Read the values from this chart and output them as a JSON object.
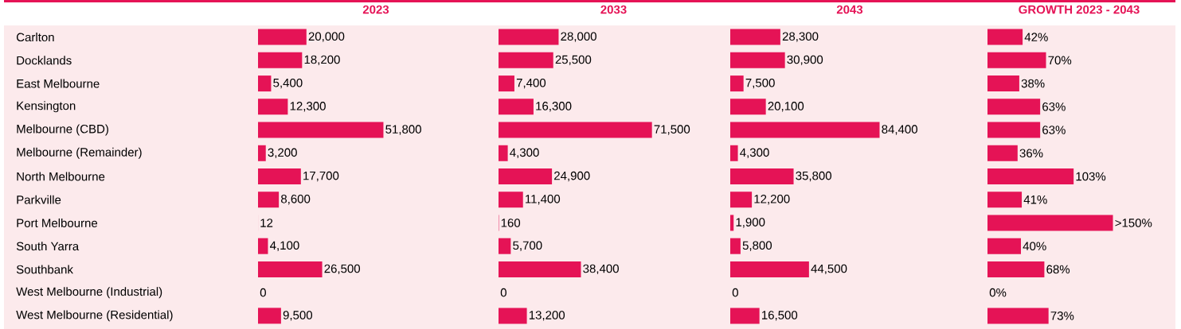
{
  "chart_data": [
    {
      "type": "bar",
      "orientation": "horizontal",
      "title": "2023",
      "color": "#e51356",
      "tick_labels": "y",
      "categories": [
        "Carlton",
        "Docklands",
        "East Melbourne",
        "Kensington",
        "Melbourne (CBD)",
        "Melbourne (Remainder)",
        "North Melbourne",
        "Parkville",
        "Port Melbourne",
        "South Yarra",
        "Southbank",
        "West Melbourne (Industrial)",
        "West Melbourne (Residential)"
      ],
      "values": [
        20000,
        18200,
        5400,
        12300,
        51800,
        3200,
        17700,
        8600,
        12,
        4100,
        26500,
        0,
        9500
      ],
      "value_labels": [
        "20,000",
        "18,200",
        "5,400",
        "12,300",
        "51,800",
        "3,200",
        "17,700",
        "8,600",
        "12",
        "4,100",
        "26,500",
        "0",
        "9,500"
      ]
    },
    {
      "type": "bar",
      "orientation": "horizontal",
      "title": "2033",
      "color": "#e51356",
      "tick_labels": false,
      "values": [
        28000,
        25500,
        7400,
        16300,
        71500,
        4300,
        24900,
        11400,
        160,
        5700,
        38400,
        0,
        13200
      ],
      "value_labels": [
        "28,000",
        "25,500",
        "7,400",
        "16,300",
        "71,500",
        "4,300",
        "24,900",
        "11,400",
        "160",
        "5,700",
        "38,400",
        "0",
        "13,200"
      ]
    },
    {
      "type": "bar",
      "orientation": "horizontal",
      "title": "2043",
      "color": "#e51356",
      "tick_labels": false,
      "values": [
        28300,
        30900,
        7500,
        20100,
        84400,
        4300,
        35800,
        12200,
        1900,
        5800,
        44500,
        0,
        16500
      ],
      "value_labels": [
        "28,300",
        "30,900",
        "7,500",
        "20,100",
        "84,400",
        "4,300",
        "35,800",
        "12,200",
        "1,900",
        "5,800",
        "44,500",
        "0",
        "16,500"
      ]
    },
    {
      "type": "bar",
      "orientation": "horizontal",
      "title": "GROWTH 2023 - 2043",
      "color": "#e51356",
      "tick_labels": false,
      "values": [
        42,
        70,
        38,
        63,
        63,
        36,
        103,
        41,
        150,
        40,
        68,
        0,
        73
      ],
      "value_labels": [
        "42%",
        "70%",
        "38%",
        "63%",
        "63%",
        "36%",
        "103%",
        "41%",
        ">150%",
        "40%",
        "68%",
        "0%",
        "73%"
      ]
    }
  ]
}
